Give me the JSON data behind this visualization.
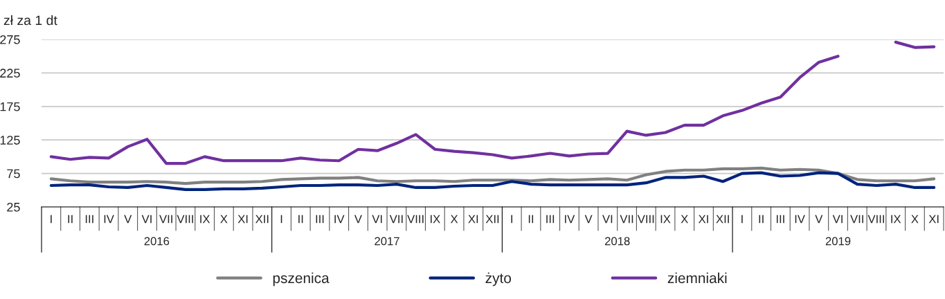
{
  "chart_data": {
    "type": "line",
    "ylabel": "zł za 1 dt",
    "categories": [
      "I",
      "II",
      "III",
      "IV",
      "V",
      "VI",
      "VII",
      "VIII",
      "IX",
      "X",
      "XI",
      "XII",
      "I",
      "II",
      "III",
      "IV",
      "V",
      "VI",
      "VII",
      "VIII",
      "IX",
      "X",
      "XI",
      "XII",
      "I",
      "II",
      "III",
      "IV",
      "V",
      "VI",
      "VII",
      "VIII",
      "IX",
      "X",
      "XI",
      "XII",
      "I",
      "II",
      "III",
      "IV",
      "V",
      "VI",
      "VII",
      "VIII",
      "IX",
      "X",
      "XI"
    ],
    "annotations": [
      "2016",
      "2017",
      "2018",
      "2019"
    ],
    "series": [
      {
        "name": "pszenica",
        "color": "#808080",
        "values": [
          67,
          64,
          62,
          62,
          62,
          63,
          62,
          60,
          62,
          62,
          62,
          63,
          66,
          67,
          68,
          68,
          69,
          64,
          63,
          64,
          64,
          63,
          65,
          65,
          65,
          64,
          66,
          65,
          66,
          67,
          65,
          73,
          78,
          80,
          80,
          82,
          82,
          83,
          80,
          81,
          80,
          75,
          66,
          64,
          64,
          64,
          67
        ]
      },
      {
        "name": "żyto",
        "color": "#00237d",
        "values": [
          57,
          58,
          58,
          55,
          54,
          57,
          54,
          51,
          51,
          52,
          52,
          53,
          55,
          57,
          57,
          58,
          58,
          57,
          59,
          54,
          54,
          56,
          57,
          57,
          63,
          59,
          58,
          58,
          58,
          58,
          58,
          61,
          69,
          69,
          71,
          63,
          75,
          76,
          71,
          72,
          76,
          75,
          59,
          57,
          59,
          54,
          54
        ]
      },
      {
        "name": "ziemniaki",
        "color": "#7030a0",
        "values": [
          100,
          96,
          99,
          98,
          115,
          126,
          90,
          90,
          100,
          94,
          94,
          94,
          94,
          98,
          95,
          94,
          111,
          109,
          120,
          133,
          111,
          108,
          106,
          103,
          98,
          101,
          105,
          101,
          104,
          105,
          138,
          132,
          136,
          147,
          147,
          161,
          169,
          180,
          189,
          218,
          241,
          250,
          null,
          null,
          271,
          263,
          264
        ]
      }
    ],
    "ylim": [
      25,
      275
    ],
    "yticks": [
      25,
      75,
      125,
      175,
      225,
      275
    ],
    "grid": "y",
    "legend": "bottom",
    "marker": "none",
    "line_style": "solid"
  }
}
